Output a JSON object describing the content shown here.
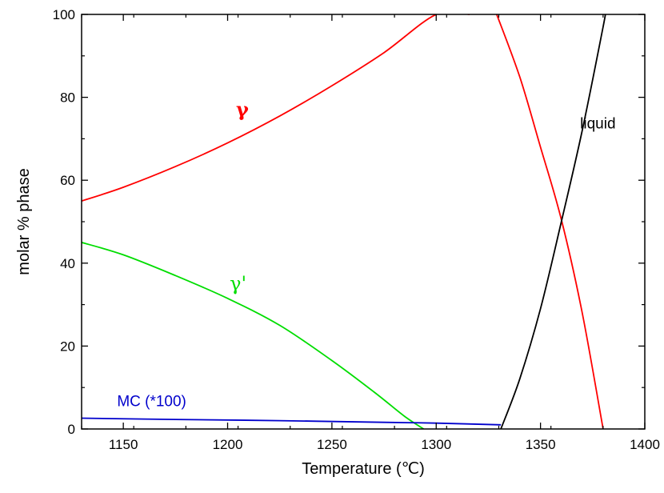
{
  "chart_data": {
    "type": "line",
    "xlabel": "Temperature (℃)",
    "ylabel": "molar % phase",
    "xlim": [
      1130,
      1400
    ],
    "ylim": [
      0,
      100
    ],
    "xticks": [
      1150,
      1200,
      1250,
      1300,
      1350,
      1400
    ],
    "yticks": [
      0,
      20,
      40,
      60,
      80,
      100
    ],
    "grid": false,
    "series": [
      {
        "label_key": "gamma",
        "color": "#ff0000",
        "segments": [
          {
            "x": [
              1130,
              1150,
              1175,
              1200,
              1225,
              1250,
              1275,
              1300,
              1316
            ],
            "y": [
              55,
              58.3,
              63.3,
              69,
              75.5,
              82.8,
              90.8,
              100,
              100
            ]
          },
          {
            "x": [
              1329,
              1340,
              1350,
              1360,
              1370,
              1380
            ],
            "y": [
              100,
              85,
              68,
              50.5,
              28,
              0
            ]
          }
        ]
      },
      {
        "label_key": "gamma_prime",
        "color": "#00dd00",
        "segments": [
          {
            "x": [
              1130,
              1150,
              1175,
              1200,
              1225,
              1250,
              1270,
              1285,
              1294
            ],
            "y": [
              45,
              42,
              37,
              31.5,
              25,
              16.5,
              9,
              3,
              0
            ]
          }
        ]
      },
      {
        "label_key": "mc",
        "color": "#0000cc",
        "segments": [
          {
            "x": [
              1130,
              1175,
              1225,
              1275,
              1300,
              1331
            ],
            "y": [
              2.6,
              2.3,
              2.0,
              1.6,
              1.4,
              1.0
            ]
          }
        ]
      },
      {
        "label_key": "liquid",
        "color": "#000000",
        "segments": [
          {
            "x": [
              1331,
              1340,
              1350,
              1360,
              1370,
              1380,
              1381
            ],
            "y": [
              0,
              12,
              29,
              50,
              72,
              97,
              100
            ]
          }
        ]
      }
    ],
    "annotations": {
      "gamma": "γ",
      "gamma_prime": "γ'",
      "mc": "MC (*100)",
      "liquid": "liquid"
    }
  }
}
